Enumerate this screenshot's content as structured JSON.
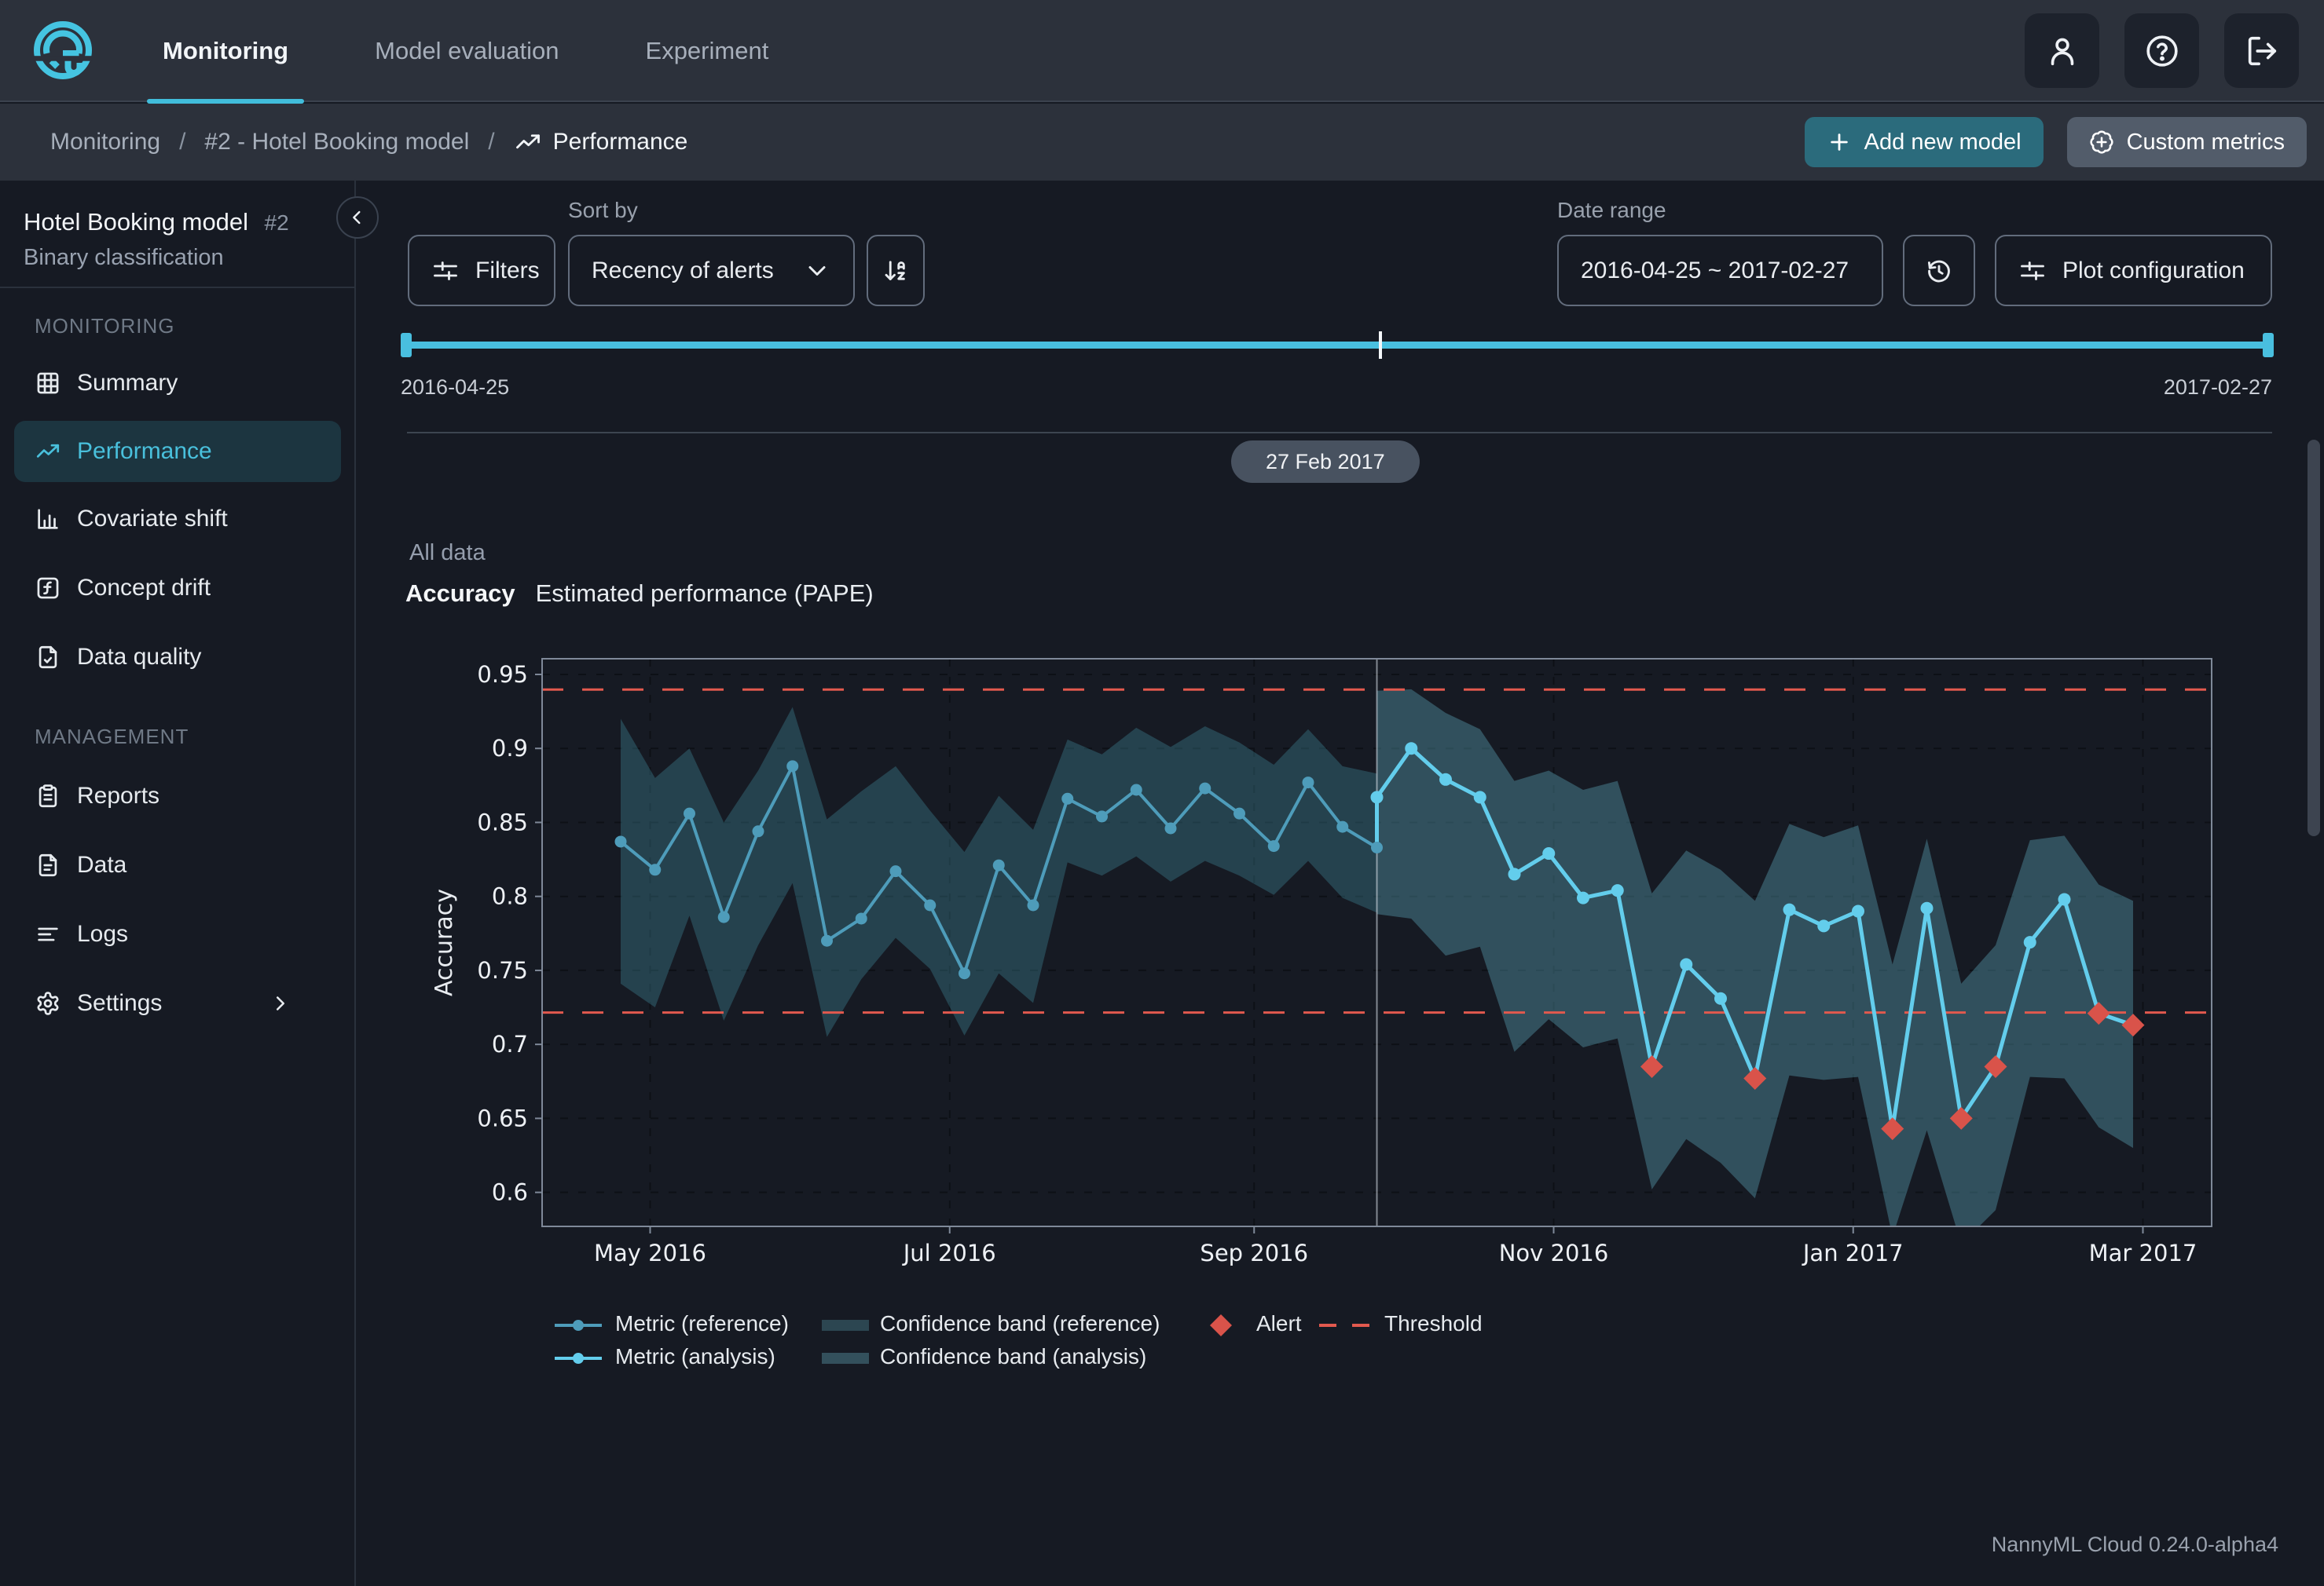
{
  "navbar": {
    "tabs": [
      {
        "label": "Monitoring",
        "active": true
      },
      {
        "label": "Model evaluation",
        "active": false
      },
      {
        "label": "Experiment",
        "active": false
      }
    ]
  },
  "breadcrumb": {
    "items": [
      "Monitoring",
      "#2 - Hotel Booking model"
    ],
    "current": "Performance"
  },
  "actions": {
    "add_model_label": "Add new model",
    "custom_metrics_label": "Custom metrics"
  },
  "sidebar": {
    "model_name": "Hotel Booking model",
    "model_id": "#2",
    "model_type": "Binary classification",
    "sections": [
      {
        "label": "MONITORING",
        "items": [
          {
            "label": "Summary",
            "icon": "table-icon",
            "active": false
          },
          {
            "label": "Performance",
            "icon": "trend-up-icon",
            "active": true
          },
          {
            "label": "Covariate shift",
            "icon": "bar-chart-icon",
            "active": false
          },
          {
            "label": "Concept drift",
            "icon": "function-square-icon",
            "active": false
          },
          {
            "label": "Data quality",
            "icon": "file-check-icon",
            "active": false
          }
        ]
      },
      {
        "label": "MANAGEMENT",
        "items": [
          {
            "label": "Reports",
            "icon": "clipboard-icon",
            "active": false
          },
          {
            "label": "Data",
            "icon": "file-text-icon",
            "active": false
          },
          {
            "label": "Logs",
            "icon": "align-left-icon",
            "active": false
          },
          {
            "label": "Settings",
            "icon": "gear-icon",
            "active": false,
            "chevron": true
          }
        ]
      }
    ]
  },
  "controls": {
    "filters_label": "Filters",
    "sort_by_label": "Sort by",
    "sort_value": "Recency of alerts",
    "date_range_label": "Date range",
    "date_range_value": "2016-04-25 ~ 2017-02-27",
    "plot_config_label": "Plot configuration"
  },
  "timeline": {
    "start": "2016-04-25",
    "end": "2017-02-27",
    "selected_pill": "27 Feb 2017"
  },
  "section": {
    "group_label": "All data"
  },
  "chart_data": {
    "type": "line",
    "title": "Accuracy",
    "subtitle": "Estimated performance (PAPE)",
    "ylabel": "Accuracy",
    "ylim": [
      0.577,
      0.9606
    ],
    "yticks": [
      0.6,
      0.65,
      0.7,
      0.75,
      0.8,
      0.85,
      0.9,
      0.95
    ],
    "x_range": [
      "2016-04-09",
      "2017-03-15"
    ],
    "xticks": [
      {
        "date": "2016-05-01",
        "label": "May 2016"
      },
      {
        "date": "2016-07-01",
        "label": "Jul 2016"
      },
      {
        "date": "2016-09-01",
        "label": "Sep 2016"
      },
      {
        "date": "2016-11-01",
        "label": "Nov 2016"
      },
      {
        "date": "2017-01-01",
        "label": "Jan 2017"
      },
      {
        "date": "2017-03-01",
        "label": "Mar 2017"
      }
    ],
    "grid": true,
    "legend_position": "bottom",
    "split_date": "2016-09-26",
    "thresholds": {
      "upper": 0.9398,
      "lower": 0.7215
    },
    "series": [
      {
        "name": "Metric (reference)",
        "dates": [
          "2016-04-25",
          "2016-05-02",
          "2016-05-09",
          "2016-05-16",
          "2016-05-23",
          "2016-05-30",
          "2016-06-06",
          "2016-06-13",
          "2016-06-20",
          "2016-06-27",
          "2016-07-04",
          "2016-07-11",
          "2016-07-18",
          "2016-07-25",
          "2016-08-01",
          "2016-08-08",
          "2016-08-15",
          "2016-08-22",
          "2016-08-29",
          "2016-09-05",
          "2016-09-12",
          "2016-09-19",
          "2016-09-26"
        ],
        "values": [
          0.837,
          0.818,
          0.856,
          0.786,
          0.844,
          0.888,
          0.77,
          0.785,
          0.817,
          0.794,
          0.748,
          0.821,
          0.794,
          0.866,
          0.854,
          0.872,
          0.846,
          0.873,
          0.856,
          0.834,
          0.877,
          0.847,
          0.833
        ],
        "band_upper": [
          0.92,
          0.88,
          0.9,
          0.85,
          0.885,
          0.928,
          0.852,
          0.871,
          0.888,
          0.858,
          0.83,
          0.868,
          0.845,
          0.906,
          0.896,
          0.914,
          0.901,
          0.915,
          0.904,
          0.889,
          0.913,
          0.888,
          0.883
        ],
        "band_lower": [
          0.741,
          0.725,
          0.787,
          0.716,
          0.767,
          0.809,
          0.705,
          0.744,
          0.772,
          0.751,
          0.706,
          0.748,
          0.728,
          0.823,
          0.814,
          0.827,
          0.81,
          0.824,
          0.814,
          0.801,
          0.824,
          0.799,
          0.789
        ]
      },
      {
        "name": "Metric (analysis)",
        "join_value": 0.833,
        "dates": [
          "2016-09-26",
          "2016-10-03",
          "2016-10-10",
          "2016-10-17",
          "2016-10-24",
          "2016-10-31",
          "2016-11-07",
          "2016-11-14",
          "2016-11-21",
          "2016-11-28",
          "2016-12-05",
          "2016-12-12",
          "2016-12-19",
          "2016-12-26",
          "2017-01-02",
          "2017-01-09",
          "2017-01-16",
          "2017-01-23",
          "2017-01-30",
          "2017-02-06",
          "2017-02-13",
          "2017-02-20",
          "2017-02-27"
        ],
        "values": [
          0.867,
          0.9,
          0.879,
          0.867,
          0.815,
          0.829,
          0.799,
          0.804,
          0.685,
          0.754,
          0.731,
          0.677,
          0.791,
          0.78,
          0.79,
          0.643,
          0.792,
          0.65,
          0.685,
          0.769,
          0.798,
          0.721,
          0.713
        ],
        "band_upper": [
          0.939,
          0.94,
          0.924,
          0.913,
          0.878,
          0.885,
          0.872,
          0.878,
          0.802,
          0.831,
          0.818,
          0.797,
          0.849,
          0.84,
          0.848,
          0.754,
          0.839,
          0.741,
          0.767,
          0.838,
          0.841,
          0.808,
          0.797
        ],
        "band_lower": [
          0.788,
          0.785,
          0.76,
          0.766,
          0.695,
          0.717,
          0.698,
          0.704,
          0.602,
          0.636,
          0.62,
          0.596,
          0.679,
          0.676,
          0.678,
          0.57,
          0.642,
          0.565,
          0.588,
          0.678,
          0.677,
          0.644,
          0.63
        ]
      }
    ],
    "alerts": {
      "dates": [
        "2016-11-21",
        "2016-12-12",
        "2017-01-09",
        "2017-01-23",
        "2017-01-30",
        "2017-02-20",
        "2017-02-27"
      ],
      "values": [
        0.685,
        0.677,
        0.643,
        0.65,
        0.685,
        0.721,
        0.713
      ]
    },
    "legend": {
      "metric_reference": "Metric (reference)",
      "metric_analysis": "Metric (analysis)",
      "band_reference": "Confidence band (reference)",
      "band_analysis": "Confidence band (analysis)",
      "alert": "Alert",
      "threshold": "Threshold"
    },
    "colors": {
      "reference_line": "#4e9cba",
      "analysis_line": "#63cdec",
      "reference_band": "rgba(73,158,178,0.30)",
      "analysis_band": "rgba(96,178,198,0.36)",
      "alert": "#d9534a",
      "threshold": "#e2594e",
      "accent": "#41bddb"
    }
  },
  "footer": {
    "version_label": "NannyML Cloud 0.24.0-alpha4"
  }
}
